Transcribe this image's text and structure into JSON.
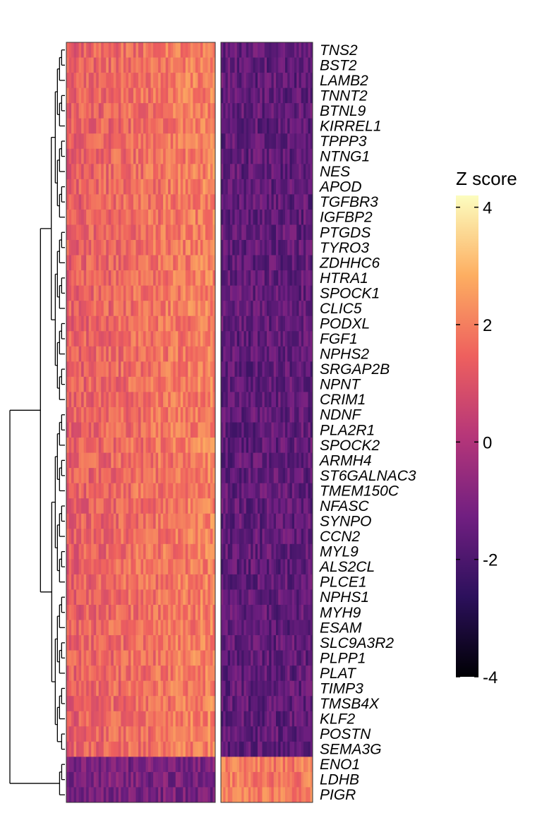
{
  "chart_data": {
    "type": "heatmap",
    "title": "",
    "rows": [
      "TNS2",
      "BST2",
      "LAMB2",
      "TNNT2",
      "BTNL9",
      "KIRREL1",
      "TPPP3",
      "NTNG1",
      "NES",
      "APOD",
      "TGFBR3",
      "IGFBP2",
      "PTGDS",
      "TYRO3",
      "ZDHHC6",
      "HTRA1",
      "SPOCK1",
      "CLIC5",
      "PODXL",
      "FGF1",
      "NPHS2",
      "SRGAP2B",
      "NPNT",
      "CRIM1",
      "NDNF",
      "PLA2R1",
      "SPOCK2",
      "ARMH4",
      "ST6GALNAC3",
      "TMEM150C",
      "NFASC",
      "SYNPO",
      "CCN2",
      "MYL9",
      "ALS2CL",
      "PLCE1",
      "NPHS1",
      "MYH9",
      "ESAM",
      "SLC9A3R2",
      "PLPP1",
      "PLAT",
      "TIMP3",
      "TMSB4X",
      "KLF2",
      "POSTN",
      "SEMA3G",
      "ENO1",
      "LDHB",
      "PIGR"
    ],
    "column_groups": [
      {
        "columns": 60,
        "level": "high-in-first-block"
      },
      {
        "columns": 40,
        "level": "high-in-second-block"
      }
    ],
    "group_mean_z": {
      "first_block": {
        "upper_genes": 1.7,
        "lower_genes": -1.1
      },
      "second_block": {
        "upper_genes": -1.6,
        "lower_genes": 1.9
      }
    },
    "row_dendrogram": "left",
    "colorbar": {
      "title": "Z score",
      "min": -4,
      "max": 4.2,
      "ticks": [
        -4,
        -2,
        0,
        2,
        4
      ],
      "colors": [
        "#000004",
        "#2c105c",
        "#711f81",
        "#b63679",
        "#ee605e",
        "#fdae61",
        "#fcfdbf"
      ]
    }
  }
}
